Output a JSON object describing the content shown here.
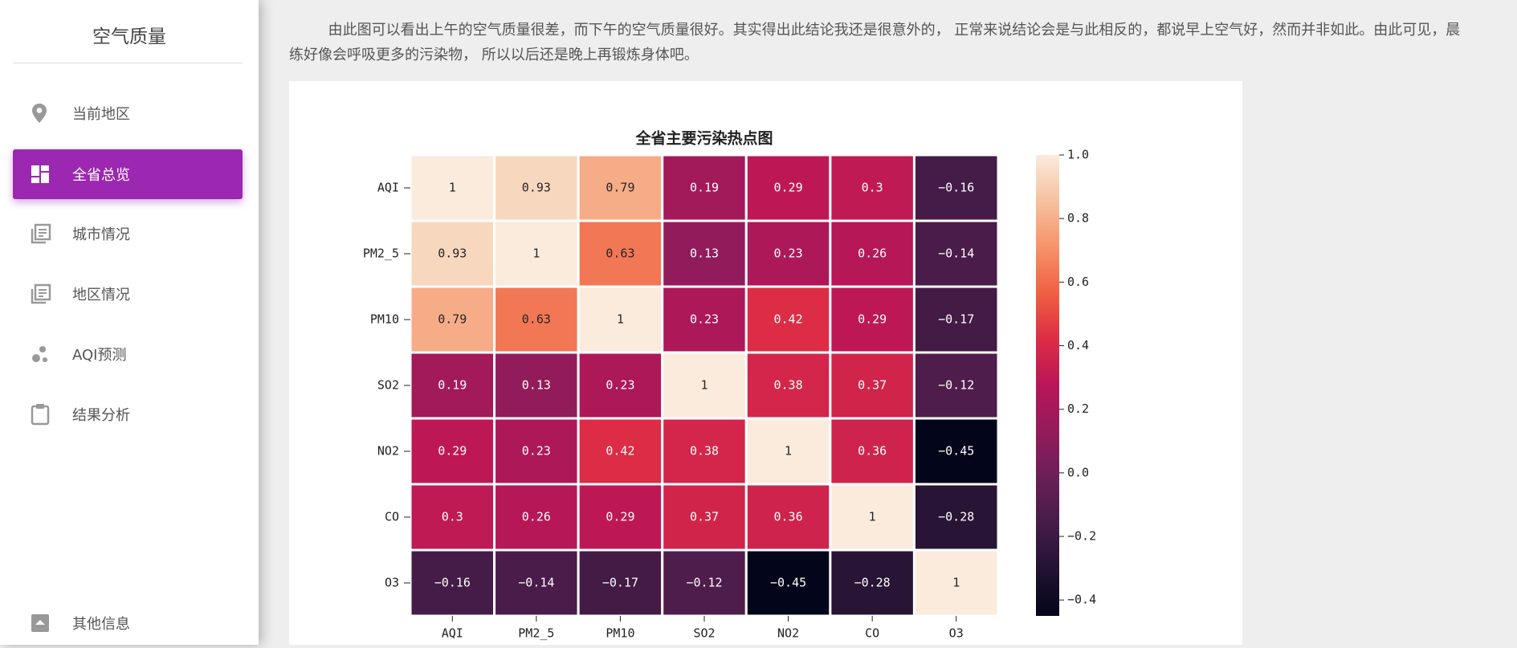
{
  "sidebar": {
    "title": "空气质量",
    "menu": [
      "当前地区",
      "全省总览",
      "城市情况",
      "地区情况",
      "AQI预测",
      "结果分析"
    ],
    "bottom": "其他信息"
  },
  "paragraph": "由此图可以看出上午的空气质量很差，而下午的空气质量很好。其实得出此结论我还是很意外的， 正常来说结论会是与此相反的，都说早上空气好，然而并非如此。由此可见，晨练好像会呼吸更多的污染物， 所以以后还是晚上再锻炼身体吧。",
  "chart_data": {
    "type": "heatmap",
    "title": "全省主要污染热点图",
    "x_categories": [
      "AQI",
      "PM2_5",
      "PM10",
      "SO2",
      "NO2",
      "CO",
      "O3"
    ],
    "y_categories": [
      "AQI",
      "PM2_5",
      "PM10",
      "SO2",
      "NO2",
      "CO",
      "O3"
    ],
    "values": [
      [
        1,
        0.93,
        0.79,
        0.19,
        0.29,
        0.3,
        -0.16
      ],
      [
        0.93,
        1,
        0.63,
        0.13,
        0.23,
        0.26,
        -0.14
      ],
      [
        0.79,
        0.63,
        1,
        0.23,
        0.42,
        0.29,
        -0.17
      ],
      [
        0.19,
        0.13,
        0.23,
        1,
        0.38,
        0.37,
        -0.12
      ],
      [
        0.29,
        0.23,
        0.42,
        0.38,
        1,
        0.36,
        -0.45
      ],
      [
        0.3,
        0.26,
        0.29,
        0.37,
        0.36,
        1,
        -0.28
      ],
      [
        -0.16,
        -0.14,
        -0.17,
        -0.12,
        -0.45,
        -0.28,
        1
      ]
    ],
    "value_labels": [
      [
        "1",
        "0.93",
        "0.79",
        "0.19",
        "0.29",
        "0.3",
        "−0.16"
      ],
      [
        "0.93",
        "1",
        "0.63",
        "0.13",
        "0.23",
        "0.26",
        "−0.14"
      ],
      [
        "0.79",
        "0.63",
        "1",
        "0.23",
        "0.42",
        "0.29",
        "−0.17"
      ],
      [
        "0.19",
        "0.13",
        "0.23",
        "1",
        "0.38",
        "0.37",
        "−0.12"
      ],
      [
        "0.29",
        "0.23",
        "0.42",
        "0.38",
        "1",
        "0.36",
        "−0.45"
      ],
      [
        "0.3",
        "0.26",
        "0.29",
        "0.37",
        "0.36",
        "1",
        "−0.28"
      ],
      [
        "−0.16",
        "−0.14",
        "−0.17",
        "−0.12",
        "−0.45",
        "−0.28",
        "1"
      ]
    ],
    "clim": [
      -0.45,
      1
    ],
    "cticks": [
      {
        "value": -0.4,
        "label": "−0.4"
      },
      {
        "value": -0.2,
        "label": "−0.2"
      },
      {
        "value": 0,
        "label": "0.0"
      },
      0.2,
      0.4,
      0.6,
      0.8,
      {
        "value": 1,
        "label": "1.0"
      }
    ],
    "colormap": [
      "#03051a",
      "#221331",
      "#451c47",
      "#6a1f56",
      "#921c5b",
      "#b91657",
      "#dd2c45",
      "#f06043",
      "#f5936a",
      "#f6c19f",
      "#faebdd"
    ]
  }
}
